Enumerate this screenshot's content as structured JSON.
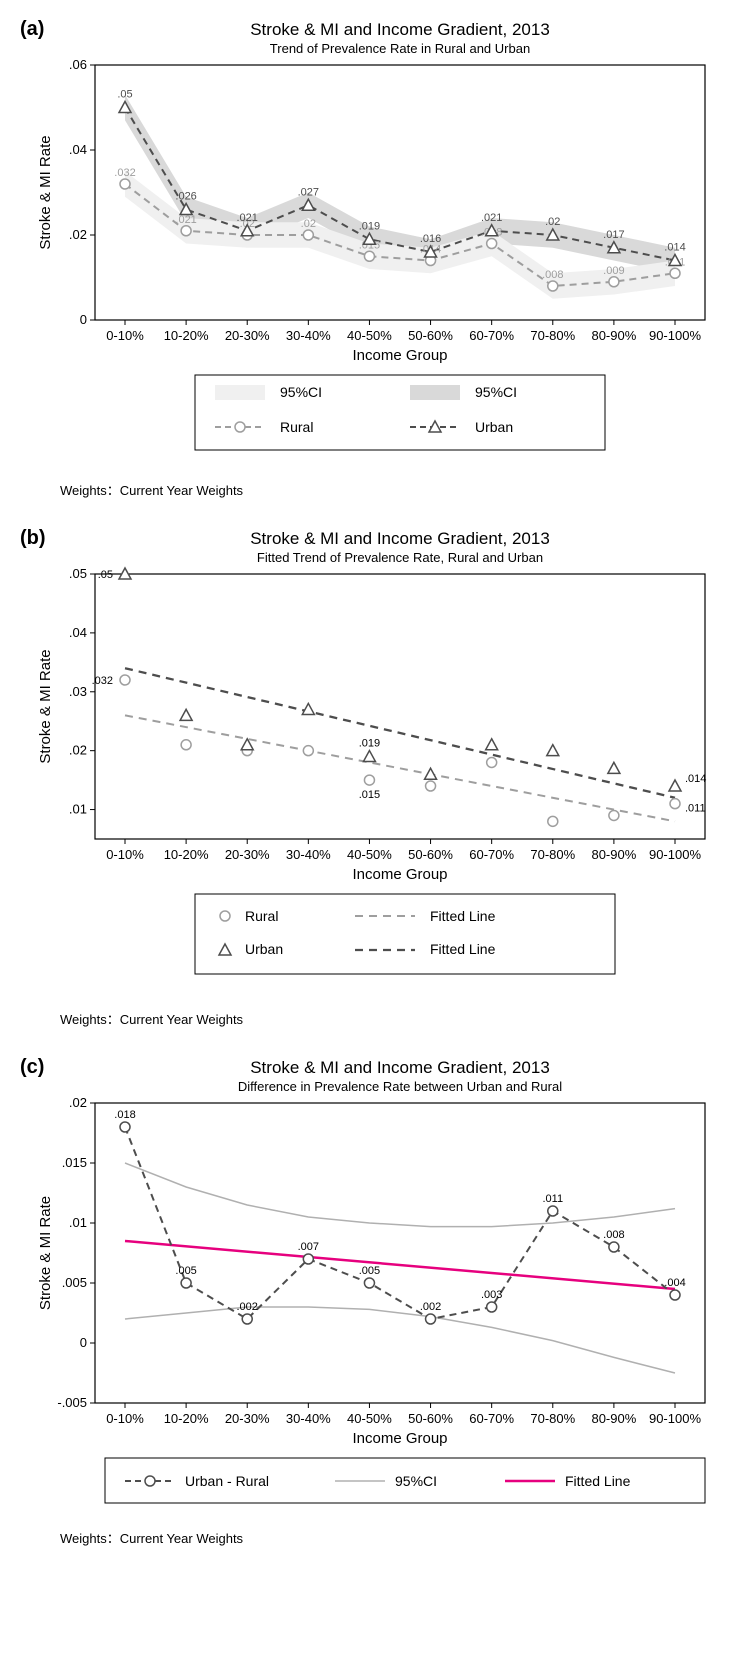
{
  "categories": [
    "0-10%",
    "10-20%",
    "20-30%",
    "30-40%",
    "40-50%",
    "50-60%",
    "60-70%",
    "70-80%",
    "80-90%",
    "90-100%"
  ],
  "xlabel": "Income Group",
  "ylabel": "Stroke & MI Rate",
  "footnote": "Weights：Current Year Weights",
  "colors": {
    "rural_line": "#9e9e9e",
    "urban_line": "#4d4d4d",
    "rural_ci": "#f0f0f0",
    "urban_ci": "#d9d9d9",
    "fitted_pink": "#e6007e",
    "ci_line": "#b0b0b0",
    "axis": "#000000",
    "text": "#000000"
  },
  "panelA": {
    "label": "(a)",
    "title": "Stroke & MI and Income Gradient, 2013",
    "subtitle": "Trend of Prevalence Rate in Rural and Urban",
    "ylim": [
      0,
      0.06
    ],
    "yticks": [
      0,
      0.02,
      0.04,
      0.06
    ],
    "ytick_labels": [
      "0",
      ".02",
      ".04",
      ".06"
    ],
    "rural": [
      0.032,
      0.021,
      0.02,
      0.02,
      0.015,
      0.014,
      0.018,
      0.008,
      0.009,
      0.011
    ],
    "urban": [
      0.05,
      0.026,
      0.021,
      0.027,
      0.019,
      0.016,
      0.021,
      0.02,
      0.017,
      0.014
    ],
    "rural_labels": [
      ".032",
      ".021",
      ".02",
      ".02",
      ".015",
      ".014",
      ".018",
      ".008",
      ".009",
      ".011"
    ],
    "urban_labels": [
      ".05",
      ".026",
      ".021",
      ".027",
      ".019",
      ".016",
      ".021",
      ".02",
      ".017",
      ".014"
    ],
    "legend": {
      "ci1": "95%CI",
      "ci2": "95%CI",
      "rural": "Rural",
      "urban": "Urban"
    }
  },
  "panelB": {
    "label": "(b)",
    "title": "Stroke & MI and Income Gradient, 2013",
    "subtitle": "Fitted Trend of Prevalence Rate, Rural and Urban",
    "ylim": [
      0.005,
      0.05
    ],
    "yticks": [
      0.01,
      0.02,
      0.03,
      0.04,
      0.05
    ],
    "ytick_labels": [
      ".01",
      ".02",
      ".03",
      ".04",
      ".05"
    ],
    "rural": [
      0.032,
      0.021,
      0.02,
      0.02,
      0.015,
      0.014,
      0.018,
      0.008,
      0.009,
      0.011
    ],
    "urban": [
      0.05,
      0.026,
      0.021,
      0.027,
      0.019,
      0.016,
      0.021,
      0.02,
      0.017,
      0.014
    ],
    "rural_fit_start": 0.026,
    "rural_fit_end": 0.008,
    "urban_fit_start": 0.034,
    "urban_fit_end": 0.012,
    "labeled_points": {
      "urban_0": ".05",
      "rural_0": ".032",
      "urban_4": ".019",
      "rural_4": ".015",
      "urban_9": ".014",
      "rural_9": ".011"
    },
    "legend": {
      "rural": "Rural",
      "fitted_r": "Fitted Line",
      "urban": "Urban",
      "fitted_u": "Fitted Line"
    }
  },
  "panelC": {
    "label": "(c)",
    "title": "Stroke & MI and Income Gradient, 2013",
    "subtitle": "Difference in Prevalence Rate between Urban and Rural",
    "ylim": [
      -0.005,
      0.02
    ],
    "yticks": [
      -0.005,
      0,
      0.005,
      0.01,
      0.015,
      0.02
    ],
    "ytick_labels": [
      "-.005",
      "0",
      ".005",
      ".01",
      ".015",
      ".02"
    ],
    "diff": [
      0.018,
      0.005,
      0.002,
      0.007,
      0.005,
      0.002,
      0.003,
      0.011,
      0.008,
      0.004
    ],
    "diff_labels": [
      ".018",
      ".005",
      ".002",
      ".007",
      ".005",
      ".002",
      ".003",
      ".011",
      ".008",
      ".004"
    ],
    "ci_upper": [
      0.015,
      0.013,
      0.0115,
      0.0105,
      0.01,
      0.0097,
      0.0097,
      0.01,
      0.0105,
      0.0112
    ],
    "ci_lower": [
      0.002,
      0.0025,
      0.003,
      0.003,
      0.0028,
      0.0022,
      0.0013,
      0.0002,
      -0.0012,
      -0.0025
    ],
    "fit_start": 0.0085,
    "fit_end": 0.0045,
    "legend": {
      "diff": "Urban - Rural",
      "ci": "95%CI",
      "fit": "Fitted Line"
    }
  }
}
